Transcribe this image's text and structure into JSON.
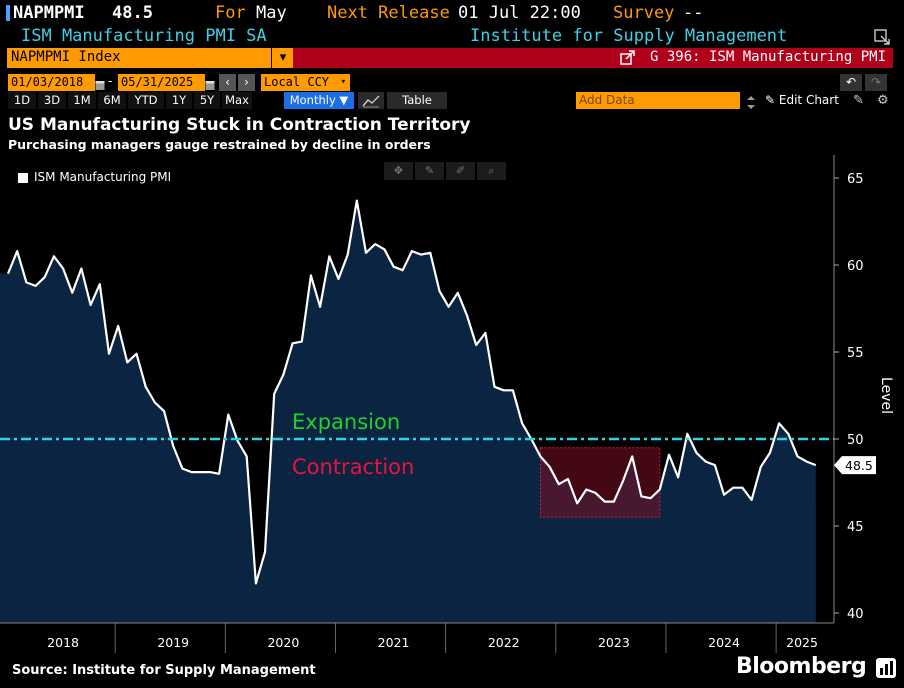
{
  "header": {
    "ticker": "NAPMPMI",
    "value": "48.5",
    "for_label": "For",
    "for_value": "May",
    "next_release_label": "Next Release",
    "next_release_value": "01 Jul 22:00",
    "survey_label": "Survey",
    "survey_value": "--",
    "security_name": "ISM Manufacturing PMI SA",
    "source_name": "Institute for Supply Management"
  },
  "command_bar": {
    "ticker_field": "NAPMPMI Index",
    "dropdown_glyph": "▾",
    "function_label": "G 396: ISM Manufacturing PMI"
  },
  "controls": {
    "start_date": "01/03/2018",
    "end_date": "05/31/2025",
    "currency": "Local CCY",
    "range_tabs": [
      "1D",
      "3D",
      "1M",
      "6M",
      "YTD",
      "1Y",
      "5Y",
      "Max"
    ],
    "frequency": "Monthly",
    "table_label": "Table",
    "add_data_placeholder": "Add Data",
    "edit_chart_label": "Edit Chart"
  },
  "colors": {
    "accent_orange": "#ff9a00",
    "command_red": "#b0001a",
    "series_fill": "#0a2442",
    "threshold": "#2fd4e3",
    "expansion_text": "#22d12a",
    "contraction_text": "#e8143c"
  },
  "chart_data": {
    "type": "area",
    "title": "US Manufacturing Stuck in Contraction Territory",
    "subtitle": "Purchasing managers gauge restrained by decline in orders",
    "source": "Source: Institute for Supply Management",
    "brand": "Bloomberg",
    "ylabel": "Level",
    "ylim": [
      40,
      65
    ],
    "yticks": [
      40,
      45,
      50,
      55,
      60,
      65
    ],
    "xlabels": [
      "2018",
      "2019",
      "2020",
      "2021",
      "2022",
      "2023",
      "2024",
      "2025"
    ],
    "legend": "ISM Manufacturing PMI",
    "last_value_label": "48.5",
    "threshold": 50,
    "annotations": {
      "above": "Expansion",
      "below": "Contraction"
    },
    "highlight_period": {
      "start": "2022-11",
      "end": "2023-12",
      "ymin": 45.5,
      "ymax": 49.5
    },
    "series": [
      {
        "name": "ISM Manufacturing PMI",
        "start": "2018-01",
        "values": [
          59.5,
          60.8,
          59.0,
          58.8,
          59.3,
          60.5,
          59.8,
          58.4,
          59.8,
          57.7,
          58.9,
          54.9,
          56.5,
          54.4,
          54.9,
          53.0,
          52.1,
          51.6,
          49.6,
          48.3,
          48.1,
          48.1,
          48.1,
          48.0,
          51.4,
          49.9,
          49.0,
          41.7,
          43.5,
          52.6,
          53.7,
          55.5,
          55.6,
          59.4,
          57.6,
          60.5,
          59.2,
          60.6,
          63.7,
          60.7,
          61.2,
          60.9,
          59.9,
          59.7,
          60.8,
          60.6,
          60.7,
          58.5,
          57.6,
          58.4,
          57.1,
          55.4,
          56.1,
          53.0,
          52.8,
          52.8,
          50.9,
          50.0,
          49.0,
          48.4,
          47.4,
          47.7,
          46.3,
          47.1,
          46.9,
          46.4,
          46.4,
          47.6,
          49.0,
          46.7,
          46.6,
          47.1,
          49.1,
          47.8,
          50.3,
          49.2,
          48.7,
          48.5,
          46.8,
          47.2,
          47.2,
          46.5,
          48.4,
          49.2,
          50.9,
          50.3,
          49.0,
          48.7,
          48.5
        ]
      }
    ]
  }
}
